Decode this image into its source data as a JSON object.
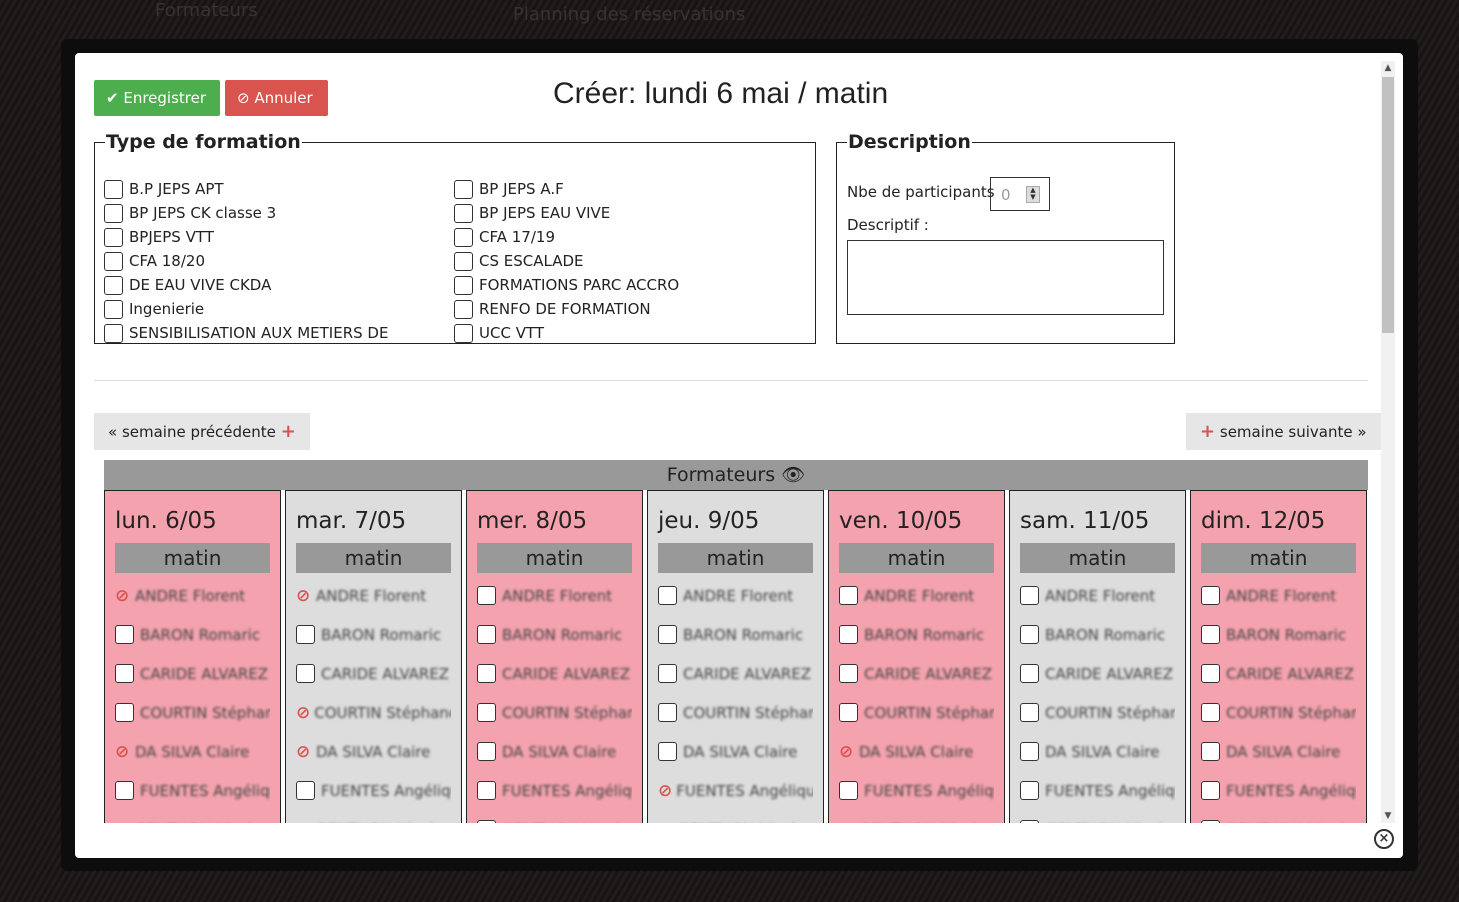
{
  "background": {
    "brand": "Formateurs",
    "title": "Planning des réservations"
  },
  "modal": {
    "title": "Créer: lundi 6 mai / matin",
    "save_label": "Enregistrer",
    "cancel_label": "Annuler",
    "type_formation": {
      "legend": "Type de formation",
      "options": [
        "B.P JEPS APT",
        "BP JEPS A.F",
        "BP JEPS CK classe 3",
        "BP JEPS EAU VIVE",
        "BPJEPS VTT",
        "CFA 17/19",
        "CFA 18/20",
        "CS ESCALADE",
        "DE EAU VIVE CKDA",
        "FORMATIONS PARC ACCRO",
        "Ingenierie",
        "RENFO DE FORMATION",
        "SENSIBILISATION AUX METIERS DE",
        "UCC VTT"
      ]
    },
    "description": {
      "legend": "Description",
      "participants_label": "Nbe de participants",
      "participants_value": "0",
      "descriptif_label": "Descriptif :"
    },
    "prev_week": "semaine précédente",
    "next_week": "semaine suivante",
    "formateurs_header": "Formateurs",
    "slot_label": "matin",
    "colors": {
      "pink": "#f4a3ae",
      "gray": "#dddddd",
      "save": "#4cae4c",
      "cancel": "#d9534f"
    },
    "trainers": [
      "ANDRE Florent",
      "BARON Romaric",
      "CARIDE ALVAREZ Gael",
      "COURTIN Stéphane",
      "DA SILVA Claire",
      "FUENTES Angélique",
      "GENTHON Nicolas"
    ],
    "days": [
      {
        "label": "lun. 6/05",
        "color": "pink",
        "unavailable": [
          0,
          4,
          6
        ]
      },
      {
        "label": "mar. 7/05",
        "color": "gray",
        "unavailable": [
          0,
          3,
          4,
          6
        ]
      },
      {
        "label": "mer. 8/05",
        "color": "pink",
        "unavailable": []
      },
      {
        "label": "jeu. 9/05",
        "color": "gray",
        "unavailable": [
          5,
          6
        ]
      },
      {
        "label": "ven. 10/05",
        "color": "pink",
        "unavailable": [
          4,
          6
        ]
      },
      {
        "label": "sam. 11/05",
        "color": "gray",
        "unavailable": []
      },
      {
        "label": "dim. 12/05",
        "color": "pink",
        "unavailable": []
      }
    ]
  }
}
